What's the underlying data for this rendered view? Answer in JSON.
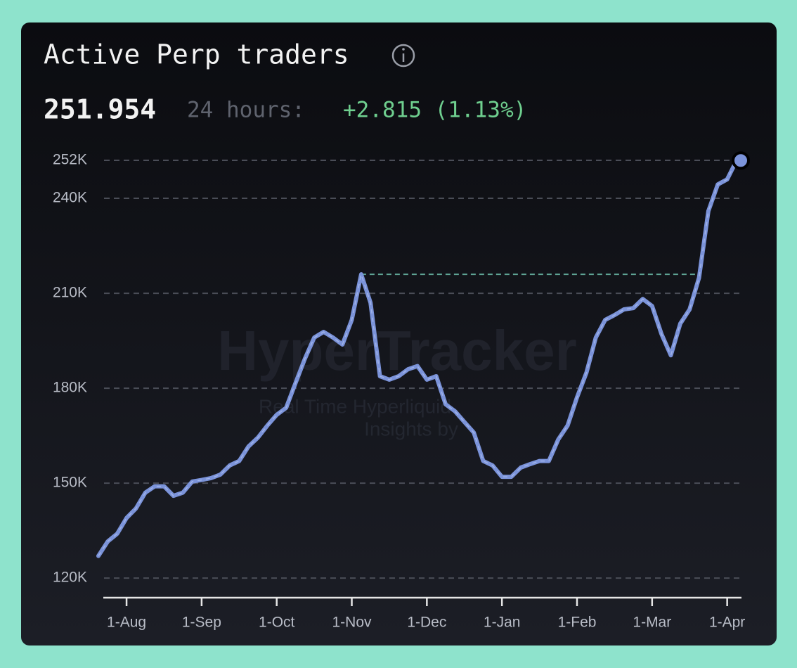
{
  "chart_data": {
    "type": "line",
    "title": "Active Perp traders",
    "current": "251.954",
    "change_label": "24 hours:",
    "change": "+2.815 (1.13%)",
    "change_color": "#6fcf8f",
    "watermark": [
      "HyperTracker",
      "Real Time Hyperliquid",
      "Insights by"
    ],
    "categories": [
      null,
      null,
      null,
      "1-Aug",
      null,
      null,
      null,
      null,
      null,
      null,
      null,
      "1-Sep",
      null,
      null,
      null,
      null,
      null,
      null,
      null,
      "1-Oct",
      null,
      null,
      null,
      null,
      null,
      null,
      null,
      "1-Nov",
      null,
      null,
      null,
      null,
      null,
      null,
      null,
      "1-Dec",
      null,
      null,
      null,
      null,
      null,
      null,
      null,
      "1-Jan",
      null,
      null,
      null,
      null,
      null,
      null,
      null,
      "1-Feb",
      null,
      null,
      null,
      null,
      null,
      null,
      null,
      "1-Mar",
      null,
      null,
      null,
      null,
      null,
      null,
      null,
      "1-Apr",
      null
    ],
    "series": [
      {
        "name": "Active Perp traders",
        "color": "#7b93d9",
        "values": [
          127,
          131.6,
          134,
          139,
          142,
          147,
          149,
          149,
          146,
          147,
          150.5,
          151,
          151.6,
          152.7,
          155.6,
          157,
          161.6,
          164.4,
          168.2,
          171.6,
          173.8,
          181.6,
          189.3,
          196,
          197.8,
          196,
          193.8,
          201.6,
          216,
          207,
          183.8,
          182.7,
          183.8,
          186,
          187,
          182.7,
          183.8,
          174.9,
          172.7,
          169.3,
          166,
          157,
          155.6,
          152,
          152,
          154.9,
          156,
          157,
          157,
          163.8,
          168.2,
          177.1,
          184.9,
          196,
          201.6,
          203.1,
          204.9,
          205.3,
          208.2,
          206,
          197.1,
          190.4,
          200.4,
          204.9,
          214.9,
          236,
          244.4,
          246,
          251.954
        ]
      }
    ],
    "ylim": [
      113.8,
      254.9
    ],
    "yticks": [
      {
        "value": 120,
        "label": "120K"
      },
      {
        "value": 150,
        "label": "150K"
      },
      {
        "value": 180,
        "label": "180K"
      },
      {
        "value": 210,
        "label": "210K"
      },
      {
        "value": 240,
        "label": "240K"
      },
      {
        "value": 252,
        "label": "252K"
      }
    ],
    "grid": true
  }
}
